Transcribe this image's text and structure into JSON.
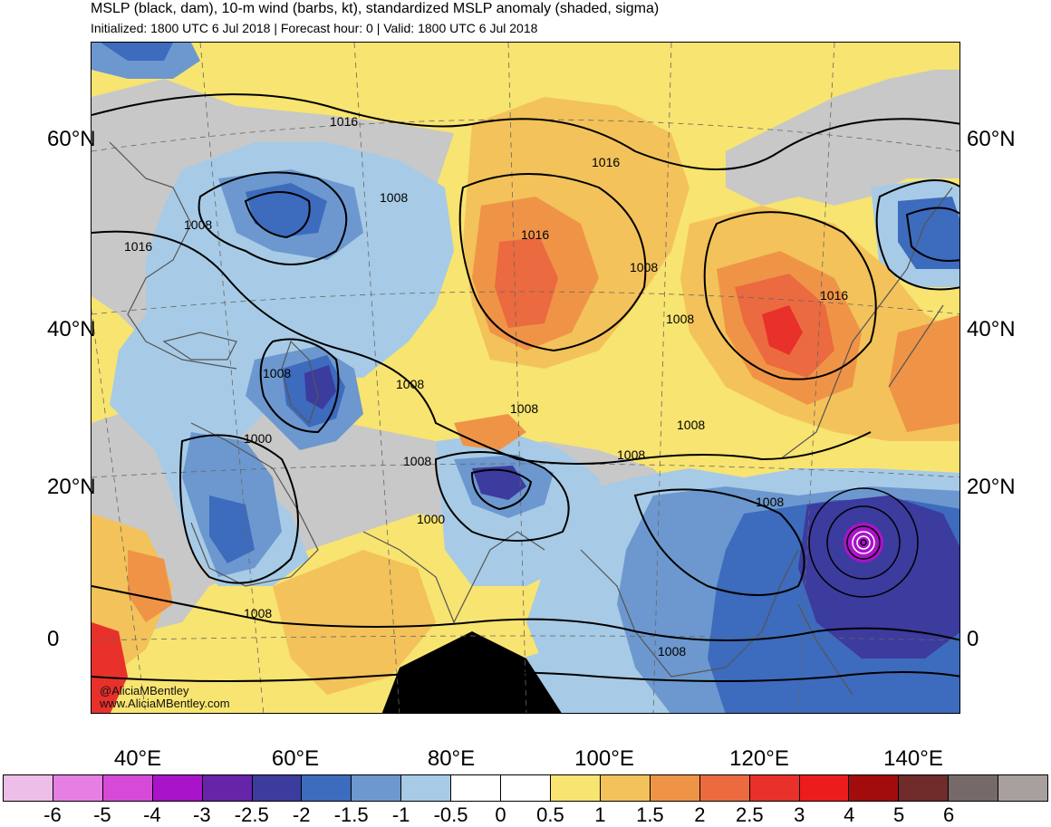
{
  "header": {
    "title": "MSLP (black, dam), 10-m wind (barbs, kt), standardized MSLP anomaly (shaded, sigma)",
    "subtitle": "Initialized: 1800 UTC 6 Jul 2018 | Forecast hour: 0 | Valid: 1800 UTC 6 Jul 2018"
  },
  "axes": {
    "lat_labels": [
      "60°N",
      "40°N",
      "20°N",
      "0"
    ],
    "lon_labels": [
      "40°E",
      "60°E",
      "80°E",
      "100°E",
      "120°E",
      "140°E"
    ]
  },
  "map": {
    "contour_labels": [
      "1016",
      "1008",
      "1016",
      "1008",
      "1016",
      "1016",
      "1008",
      "1008",
      "1016",
      "1008",
      "1008",
      "1008",
      "1000",
      "1008",
      "1008",
      "1008",
      "1000",
      "1008",
      "1008",
      "1008",
      "1008"
    ],
    "credit_handle": "@AliciaMBentley",
    "credit_url": "www.AliciaMBentley.com"
  },
  "colorbar": {
    "colors": [
      "#ecbee8",
      "#e67fe4",
      "#d74ad8",
      "#a913c9",
      "#6624a8",
      "#3c3b9e",
      "#3d6bbd",
      "#6c98cf",
      "#a7cbe6",
      "#ffffff",
      "#ffffff",
      "#f8e470",
      "#f3c25a",
      "#ef9447",
      "#ec6a3f",
      "#e8312b",
      "#ec1c1c",
      "#a30c0c",
      "#6f2c2b",
      "#756a69",
      "#a89f9f"
    ],
    "tick_labels": [
      "-6",
      "-5",
      "-4",
      "-3",
      "-2.5",
      "-2",
      "-1.5",
      "-1",
      "-0.5",
      "0",
      "0.5",
      "1",
      "1.5",
      "2",
      "2.5",
      "3",
      "4",
      "5",
      "6"
    ]
  },
  "palette": {
    "gray": "#c8c8c8",
    "light_blue": "#a7cbe6",
    "mid_blue": "#6c98cf",
    "blue": "#3d6bbd",
    "dark_blue": "#3c3b9e",
    "yellow": "#f8e470",
    "light_orange": "#f3c25a",
    "orange": "#ef9447",
    "dark_orange": "#ec6a3f",
    "red": "#e8312b",
    "purple": "#a913c9"
  }
}
